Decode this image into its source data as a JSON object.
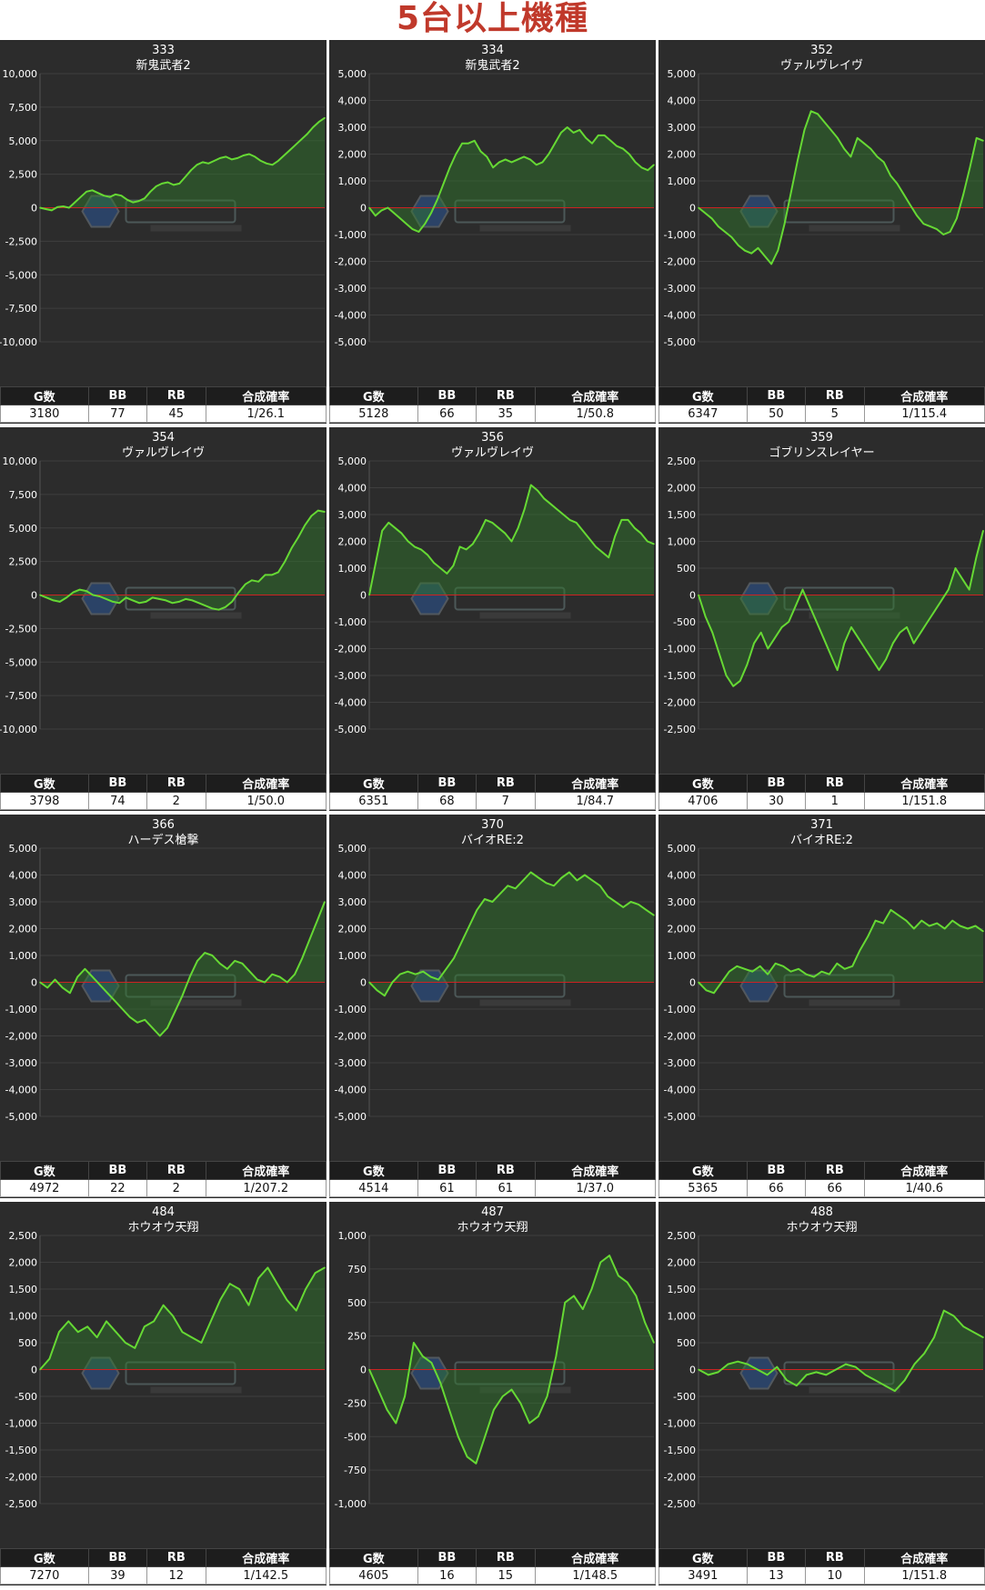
{
  "page_title": "5台以上機種",
  "table_headers": [
    "G数",
    "BB",
    "RB",
    "合成確率"
  ],
  "colors": {
    "line": "#66d934",
    "zero_line": "#cc2222",
    "panel_bg": "#2c2c2c"
  },
  "chart_data": [
    {
      "type": "area",
      "number": "333",
      "name": "新鬼武者2",
      "ylim": [
        -10000,
        10000
      ],
      "yticks": [
        "10,000",
        "7,500",
        "5,000",
        "2,500",
        "0",
        "-2,500",
        "-5,000",
        "-7,500",
        "-10,000"
      ],
      "values": [
        0,
        -100,
        -200,
        50,
        100,
        0,
        400,
        800,
        1200,
        1300,
        1100,
        900,
        800,
        1000,
        900,
        600,
        400,
        500,
        700,
        1200,
        1600,
        1800,
        1900,
        1700,
        1800,
        2300,
        2800,
        3200,
        3400,
        3300,
        3500,
        3700,
        3800,
        3600,
        3700,
        3900,
        4000,
        3800,
        3500,
        3300,
        3200,
        3500,
        3900,
        4300,
        4700,
        5100,
        5500,
        6000,
        6400,
        6700
      ],
      "stats": {
        "games": "3180",
        "bb": "77",
        "rb": "45",
        "rate": "1/26.1"
      }
    },
    {
      "type": "area",
      "number": "334",
      "name": "新鬼武者2",
      "ylim": [
        -5000,
        5000
      ],
      "yticks": [
        "5,000",
        "4,000",
        "3,000",
        "2,000",
        "1,000",
        "0",
        "-1,000",
        "-2,000",
        "-3,000",
        "-4,000",
        "-5,000"
      ],
      "values": [
        0,
        -300,
        -100,
        0,
        -200,
        -400,
        -600,
        -800,
        -900,
        -600,
        -200,
        300,
        900,
        1500,
        2000,
        2400,
        2400,
        2500,
        2100,
        1900,
        1500,
        1700,
        1800,
        1700,
        1800,
        1900,
        1800,
        1600,
        1700,
        2000,
        2400,
        2800,
        3000,
        2800,
        2900,
        2600,
        2400,
        2700,
        2700,
        2500,
        2300,
        2200,
        2000,
        1700,
        1500,
        1400,
        1600
      ],
      "stats": {
        "games": "5128",
        "bb": "66",
        "rb": "35",
        "rate": "1/50.8"
      }
    },
    {
      "type": "area",
      "number": "352",
      "name": "ヴァルヴレイヴ",
      "ylim": [
        -5000,
        5000
      ],
      "yticks": [
        "5,000",
        "4,000",
        "3,000",
        "2,000",
        "1,000",
        "0",
        "-1,000",
        "-2,000",
        "-3,000",
        "-4,000",
        "-5,000"
      ],
      "values": [
        0,
        -200,
        -400,
        -700,
        -900,
        -1100,
        -1400,
        -1600,
        -1700,
        -1500,
        -1800,
        -2100,
        -1600,
        -600,
        600,
        1800,
        2900,
        3600,
        3500,
        3200,
        2900,
        2600,
        2200,
        1900,
        2600,
        2400,
        2200,
        1900,
        1700,
        1200,
        900,
        500,
        100,
        -300,
        -600,
        -700,
        -800,
        -1000,
        -900,
        -400,
        500,
        1500,
        2600,
        2500
      ],
      "stats": {
        "games": "6347",
        "bb": "50",
        "rb": "5",
        "rate": "1/115.4"
      }
    },
    {
      "type": "area",
      "number": "354",
      "name": "ヴァルヴレイヴ",
      "ylim": [
        -10000,
        10000
      ],
      "yticks": [
        "10,000",
        "7,500",
        "5,000",
        "2,500",
        "0",
        "-2,500",
        "-5,000",
        "-7,500",
        "-10,000"
      ],
      "values": [
        0,
        -200,
        -400,
        -500,
        -200,
        200,
        400,
        300,
        0,
        -100,
        -300,
        -500,
        -600,
        -200,
        -400,
        -600,
        -500,
        -200,
        -300,
        -400,
        -600,
        -500,
        -300,
        -400,
        -600,
        -800,
        -1000,
        -1100,
        -900,
        -500,
        200,
        800,
        1100,
        1000,
        1500,
        1500,
        1700,
        2500,
        3500,
        4300,
        5200,
        5900,
        6300,
        6200
      ],
      "stats": {
        "games": "3798",
        "bb": "74",
        "rb": "2",
        "rate": "1/50.0"
      }
    },
    {
      "type": "area",
      "number": "356",
      "name": "ヴァルヴレイヴ",
      "ylim": [
        -5000,
        5000
      ],
      "yticks": [
        "5,000",
        "4,000",
        "3,000",
        "2,000",
        "1,000",
        "0",
        "-1,000",
        "-2,000",
        "-3,000",
        "-4,000",
        "-5,000"
      ],
      "values": [
        0,
        1200,
        2400,
        2700,
        2500,
        2300,
        2000,
        1800,
        1700,
        1500,
        1200,
        1000,
        800,
        1100,
        1800,
        1700,
        1900,
        2300,
        2800,
        2700,
        2500,
        2300,
        2000,
        2500,
        3200,
        4100,
        3900,
        3600,
        3400,
        3200,
        3000,
        2800,
        2700,
        2400,
        2100,
        1800,
        1600,
        1400,
        2200,
        2800,
        2800,
        2500,
        2300,
        2000,
        1900
      ],
      "stats": {
        "games": "6351",
        "bb": "68",
        "rb": "7",
        "rate": "1/84.7"
      }
    },
    {
      "type": "area",
      "number": "359",
      "name": "ゴブリンスレイヤー",
      "ylim": [
        -2500,
        2500
      ],
      "yticks": [
        "2,500",
        "2,000",
        "1,500",
        "1,000",
        "500",
        "0",
        "-500",
        "-1,000",
        "-1,500",
        "-2,000",
        "-2,500"
      ],
      "values": [
        0,
        -400,
        -700,
        -1100,
        -1500,
        -1700,
        -1600,
        -1300,
        -900,
        -700,
        -1000,
        -800,
        -600,
        -500,
        -200,
        100,
        -200,
        -500,
        -800,
        -1100,
        -1400,
        -900,
        -600,
        -800,
        -1000,
        -1200,
        -1400,
        -1200,
        -900,
        -700,
        -600,
        -900,
        -700,
        -500,
        -300,
        -100,
        100,
        500,
        300,
        100,
        700,
        1200
      ],
      "stats": {
        "games": "4706",
        "bb": "30",
        "rb": "1",
        "rate": "1/151.8"
      }
    },
    {
      "type": "area",
      "number": "366",
      "name": "ハーデス槍撃",
      "ylim": [
        -5000,
        5000
      ],
      "yticks": [
        "5,000",
        "4,000",
        "3,000",
        "2,000",
        "1,000",
        "0",
        "-1,000",
        "-2,000",
        "-3,000",
        "-4,000",
        "-5,000"
      ],
      "values": [
        0,
        -200,
        100,
        -200,
        -400,
        200,
        500,
        200,
        -100,
        -400,
        -700,
        -1000,
        -1300,
        -1500,
        -1400,
        -1700,
        -2000,
        -1700,
        -1100,
        -500,
        200,
        800,
        1100,
        1000,
        700,
        500,
        800,
        700,
        400,
        100,
        0,
        300,
        200,
        0,
        300,
        900,
        1600,
        2300,
        3000
      ],
      "stats": {
        "games": "4972",
        "bb": "22",
        "rb": "2",
        "rate": "1/207.2"
      }
    },
    {
      "type": "area",
      "number": "370",
      "name": "バイオRE:2",
      "ylim": [
        -5000,
        5000
      ],
      "yticks": [
        "5,000",
        "4,000",
        "3,000",
        "2,000",
        "1,000",
        "0",
        "-1,000",
        "-2,000",
        "-3,000",
        "-4,000",
        "-5,000"
      ],
      "values": [
        0,
        -300,
        -500,
        0,
        300,
        400,
        300,
        400,
        200,
        100,
        500,
        900,
        1500,
        2100,
        2700,
        3100,
        3000,
        3300,
        3600,
        3500,
        3800,
        4100,
        3900,
        3700,
        3600,
        3900,
        4100,
        3800,
        4000,
        3800,
        3600,
        3200,
        3000,
        2800,
        3000,
        2900,
        2700,
        2500
      ],
      "stats": {
        "games": "4514",
        "bb": "61",
        "rb": "61",
        "rate": "1/37.0"
      }
    },
    {
      "type": "area",
      "number": "371",
      "name": "バイオRE:2",
      "ylim": [
        -5000,
        5000
      ],
      "yticks": [
        "5,000",
        "4,000",
        "3,000",
        "2,000",
        "1,000",
        "0",
        "-1,000",
        "-2,000",
        "-3,000",
        "-4,000",
        "-5,000"
      ],
      "values": [
        0,
        -300,
        -400,
        0,
        400,
        600,
        500,
        400,
        600,
        300,
        700,
        600,
        400,
        500,
        300,
        200,
        400,
        300,
        700,
        500,
        600,
        1200,
        1700,
        2300,
        2200,
        2700,
        2500,
        2300,
        2000,
        2300,
        2100,
        2200,
        2000,
        2300,
        2100,
        2000,
        2100,
        1900
      ],
      "stats": {
        "games": "5365",
        "bb": "66",
        "rb": "66",
        "rate": "1/40.6"
      }
    },
    {
      "type": "area",
      "number": "484",
      "name": "ホウオウ天翔",
      "ylim": [
        -2500,
        2500
      ],
      "yticks": [
        "2,500",
        "2,000",
        "1,500",
        "1,000",
        "500",
        "0",
        "-500",
        "-1,000",
        "-1,500",
        "-2,000",
        "-2,500"
      ],
      "values": [
        0,
        200,
        700,
        900,
        700,
        800,
        600,
        900,
        700,
        500,
        400,
        800,
        900,
        1200,
        1000,
        700,
        600,
        500,
        900,
        1300,
        1600,
        1500,
        1200,
        1700,
        1900,
        1600,
        1300,
        1100,
        1500,
        1800,
        1900
      ],
      "stats": {
        "games": "7270",
        "bb": "39",
        "rb": "12",
        "rate": "1/142.5"
      }
    },
    {
      "type": "area",
      "number": "487",
      "name": "ホウオウ天翔",
      "ylim": [
        -1000,
        1000
      ],
      "yticks": [
        "1,000",
        "750",
        "500",
        "250",
        "0",
        "-250",
        "-500",
        "-750",
        "-1,000"
      ],
      "values": [
        0,
        -150,
        -300,
        -400,
        -200,
        200,
        100,
        50,
        -100,
        -300,
        -500,
        -650,
        -700,
        -500,
        -300,
        -200,
        -150,
        -250,
        -400,
        -350,
        -200,
        100,
        500,
        550,
        450,
        600,
        800,
        850,
        700,
        650,
        550,
        350,
        200
      ],
      "stats": {
        "games": "4605",
        "bb": "16",
        "rb": "15",
        "rate": "1/148.5"
      }
    },
    {
      "type": "area",
      "number": "488",
      "name": "ホウオウ天翔",
      "ylim": [
        -2500,
        2500
      ],
      "yticks": [
        "2,500",
        "2,000",
        "1,500",
        "1,000",
        "500",
        "0",
        "-500",
        "-1,000",
        "-1,500",
        "-2,000",
        "-2,500"
      ],
      "values": [
        0,
        -100,
        -50,
        100,
        150,
        100,
        0,
        -100,
        50,
        -200,
        -300,
        -100,
        -50,
        -100,
        0,
        100,
        50,
        -100,
        -200,
        -300,
        -400,
        -200,
        100,
        300,
        600,
        1100,
        1000,
        800,
        700,
        600
      ],
      "stats": {
        "games": "3491",
        "bb": "13",
        "rb": "10",
        "rate": "1/151.8"
      }
    }
  ]
}
